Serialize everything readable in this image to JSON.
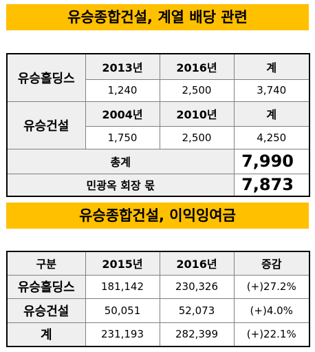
{
  "banner1": "유승종합건설, 계열 배당 관련",
  "banner2": "유승종합건설, 이익잉여금",
  "dividend": {
    "holdings": {
      "label": "유승홀딩스",
      "years": [
        "2013년",
        "2016년",
        "계"
      ],
      "values": [
        "1,240",
        "2,500",
        "3,740"
      ]
    },
    "construction": {
      "label": "유승건설",
      "years": [
        "2004년",
        "2010년",
        "계"
      ],
      "values": [
        "1,750",
        "2,500",
        "4,250"
      ]
    },
    "total": {
      "label": "총계",
      "value": "7,990"
    },
    "chairman": {
      "label": "민광옥 회장 몫",
      "value": "7,873"
    }
  },
  "retained": {
    "headers": [
      "구분",
      "2015년",
      "2016년",
      "증감"
    ],
    "rows": [
      {
        "name": "유승홀딩스",
        "v2015": "181,142",
        "v2016": "230,326",
        "change": "(+)27.2%"
      },
      {
        "name": "유승건설",
        "v2015": "50,051",
        "v2016": "52,073",
        "change": "(+)4.0%"
      },
      {
        "name": "계",
        "v2015": "231,193",
        "v2016": "282,399",
        "change": "(+)22.1%"
      }
    ]
  }
}
